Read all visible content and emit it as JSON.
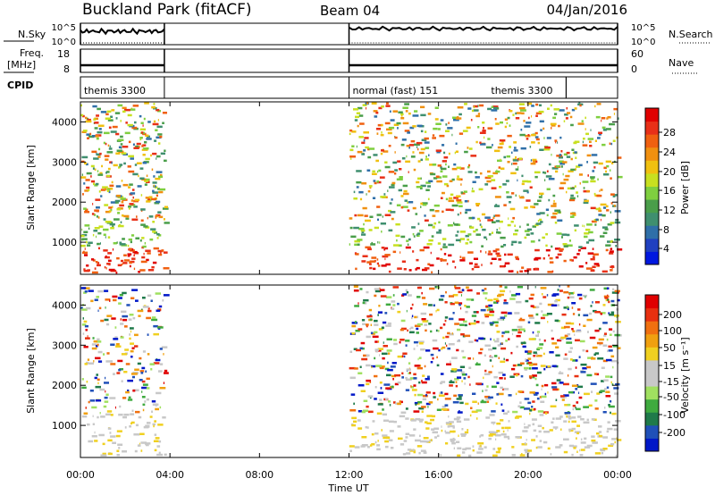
{
  "header": {
    "site": "Buckland Park (fitACF)",
    "beam": "Beam 04",
    "date": "04/Jan/2016"
  },
  "top_panels": {
    "nsky_label": "N.Sky",
    "nsky_ticks": [
      "10^5",
      "10^0"
    ],
    "nsearch_label": "N.Search",
    "nsearch_ticks": [
      "10^5",
      "10^0"
    ],
    "freq_label_line1": "Freq.",
    "freq_label_line2": "[MHz]",
    "freq_ticks": [
      "18",
      "8"
    ],
    "nave_label": "Nave",
    "nave_ticks": [
      "60",
      "0"
    ],
    "cpid_label": "CPID",
    "cpid_segments": [
      {
        "start_hour": 0.0,
        "end_hour": 3.75,
        "label": "themis 3300"
      },
      {
        "start_hour": 12.0,
        "end_hour": 21.7,
        "label": "normal (fast) 151"
      },
      {
        "start_hour": 21.7,
        "end_hour": 24.0,
        "label": "themis 3300"
      }
    ]
  },
  "chart_data": [
    {
      "type": "heatmap",
      "panel": "power",
      "ylabel": "Slant Range [km]",
      "ylim": [
        200,
        4500
      ],
      "yticks": [
        1000,
        2000,
        3000,
        4000
      ],
      "xlim_hours": [
        0,
        24
      ],
      "colorbar_title": "Power [dB]",
      "colorbar_ticks": [
        "28",
        "24",
        "20",
        "16",
        "12",
        "8",
        "4"
      ],
      "colorbar_colors": [
        "#0018e0",
        "#2040c0",
        "#2f6fa8",
        "#3f8f6f",
        "#4a9e4a",
        "#7fcf3f",
        "#c8e020",
        "#f0c010",
        "#f09010",
        "#f06010",
        "#e83018",
        "#e00000"
      ],
      "data_windows_hours": [
        [
          0,
          3.75
        ],
        [
          12,
          24
        ]
      ]
    },
    {
      "type": "heatmap",
      "panel": "velocity",
      "ylabel": "Slant Range [km]",
      "ylim": [
        200,
        4500
      ],
      "yticks": [
        1000,
        2000,
        3000,
        4000
      ],
      "xlim_hours": [
        0,
        24
      ],
      "xlabel": "Time UT",
      "xtick_labels": [
        "00:00",
        "04:00",
        "08:00",
        "12:00",
        "16:00",
        "20:00",
        "00:00"
      ],
      "xtick_hours": [
        0,
        4,
        8,
        12,
        16,
        20,
        24
      ],
      "colorbar_title": "Velocity [m s⁻¹]",
      "colorbar_ticks": [
        "200",
        "100",
        "50",
        "15",
        "-15",
        "-50",
        "-100",
        "-200"
      ],
      "colorbar_colors": [
        "#0018c8",
        "#2050b8",
        "#1f7a4a",
        "#3faa3f",
        "#a0e060",
        "#c8c8c8",
        "#c8c8c8",
        "#f0d020",
        "#f0a010",
        "#f07010",
        "#e83010",
        "#e00000"
      ],
      "data_windows_hours": [
        [
          0,
          3.75
        ],
        [
          12,
          24
        ]
      ]
    }
  ]
}
